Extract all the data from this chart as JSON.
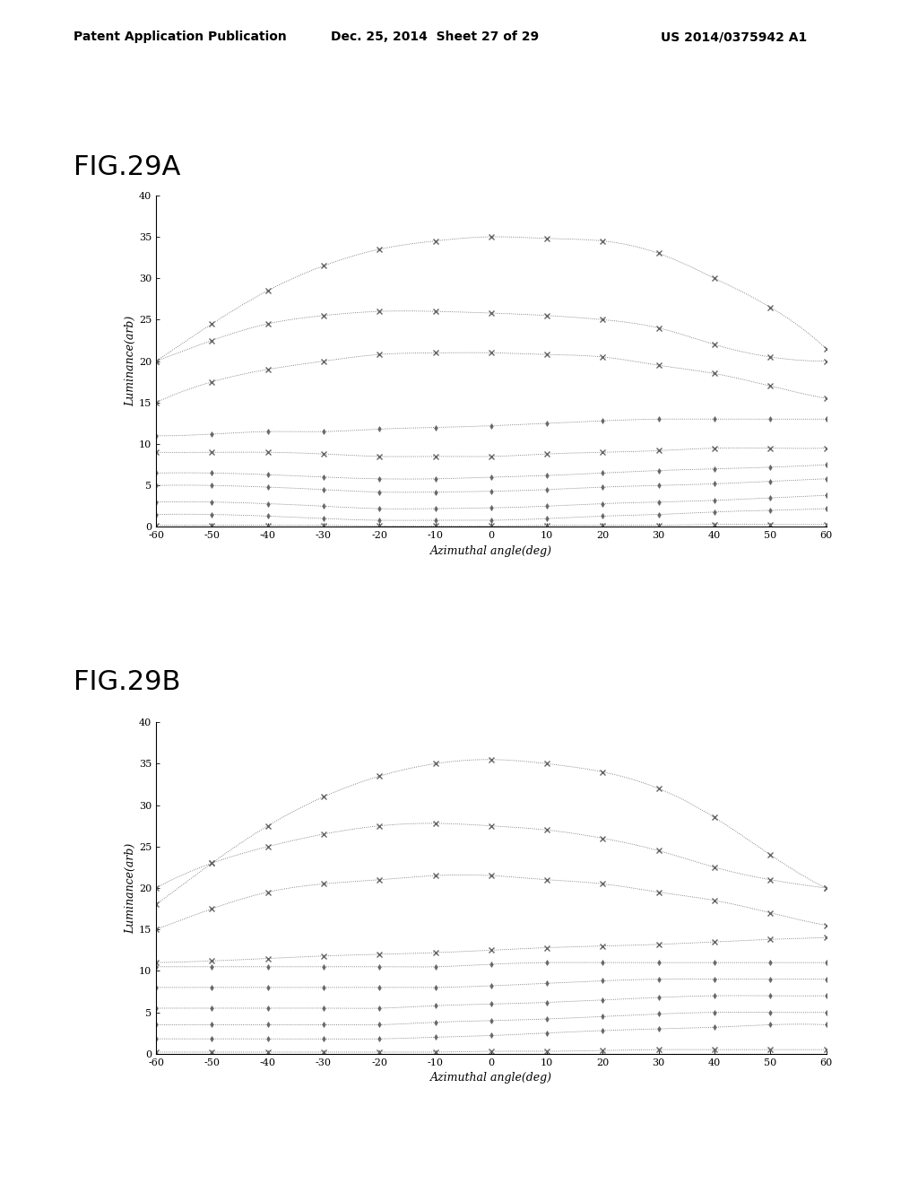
{
  "header_left": "Patent Application Publication",
  "header_mid": "Dec. 25, 2014  Sheet 27 of 29",
  "header_right": "US 2014/0375942 A1",
  "fig_a_label": "FIG.29A",
  "fig_b_label": "FIG.29B",
  "xlabel": "Azimuthal angle(deg)",
  "ylabel": "Luminance(arb)",
  "xlim": [
    -60,
    60
  ],
  "yticks": [
    0,
    5,
    10,
    15,
    20,
    25,
    30,
    35,
    40
  ],
  "xticks": [
    -60,
    -50,
    -40,
    -30,
    -20,
    -10,
    0,
    10,
    20,
    30,
    40,
    50,
    60
  ],
  "x_angles": [
    -60,
    -50,
    -40,
    -30,
    -20,
    -10,
    0,
    10,
    20,
    30,
    40,
    50,
    60
  ],
  "curves_a": [
    [
      20.0,
      24.5,
      28.5,
      31.5,
      33.5,
      34.5,
      35.0,
      34.8,
      34.5,
      33.0,
      30.0,
      26.5,
      21.5
    ],
    [
      20.0,
      22.5,
      24.5,
      25.5,
      26.0,
      26.0,
      25.8,
      25.5,
      25.0,
      24.0,
      22.0,
      20.5,
      20.0
    ],
    [
      15.0,
      17.5,
      19.0,
      20.0,
      20.8,
      21.0,
      21.0,
      20.8,
      20.5,
      19.5,
      18.5,
      17.0,
      15.5
    ],
    [
      11.0,
      11.2,
      11.5,
      11.5,
      11.8,
      12.0,
      12.2,
      12.5,
      12.8,
      13.0,
      13.0,
      13.0,
      13.0
    ],
    [
      9.0,
      9.0,
      9.0,
      8.8,
      8.5,
      8.5,
      8.5,
      8.8,
      9.0,
      9.2,
      9.5,
      9.5,
      9.5
    ],
    [
      6.5,
      6.5,
      6.3,
      6.0,
      5.8,
      5.8,
      6.0,
      6.2,
      6.5,
      6.8,
      7.0,
      7.2,
      7.5
    ],
    [
      5.0,
      5.0,
      4.8,
      4.5,
      4.2,
      4.2,
      4.3,
      4.5,
      4.8,
      5.0,
      5.2,
      5.5,
      5.8
    ],
    [
      3.0,
      3.0,
      2.8,
      2.5,
      2.2,
      2.2,
      2.3,
      2.5,
      2.8,
      3.0,
      3.2,
      3.5,
      3.8
    ],
    [
      1.5,
      1.5,
      1.3,
      1.0,
      0.8,
      0.8,
      0.8,
      1.0,
      1.3,
      1.5,
      1.8,
      2.0,
      2.2
    ],
    [
      0.2,
      0.2,
      0.2,
      0.2,
      0.1,
      0.1,
      0.1,
      0.2,
      0.2,
      0.2,
      0.3,
      0.3,
      0.3
    ]
  ],
  "markers_a": [
    "x",
    "x",
    "x",
    "d",
    "x",
    "d",
    "d",
    "d",
    "d",
    "x"
  ],
  "curves_b": [
    [
      18.0,
      23.0,
      27.5,
      31.0,
      33.5,
      35.0,
      35.5,
      35.0,
      34.0,
      32.0,
      28.5,
      24.0,
      20.0
    ],
    [
      20.0,
      23.0,
      25.0,
      26.5,
      27.5,
      27.8,
      27.5,
      27.0,
      26.0,
      24.5,
      22.5,
      21.0,
      20.0
    ],
    [
      15.0,
      17.5,
      19.5,
      20.5,
      21.0,
      21.5,
      21.5,
      21.0,
      20.5,
      19.5,
      18.5,
      17.0,
      15.5
    ],
    [
      11.0,
      11.2,
      11.5,
      11.8,
      12.0,
      12.2,
      12.5,
      12.8,
      13.0,
      13.2,
      13.5,
      13.8,
      14.0
    ],
    [
      10.5,
      10.5,
      10.5,
      10.5,
      10.5,
      10.5,
      10.8,
      11.0,
      11.0,
      11.0,
      11.0,
      11.0,
      11.0
    ],
    [
      8.0,
      8.0,
      8.0,
      8.0,
      8.0,
      8.0,
      8.2,
      8.5,
      8.8,
      9.0,
      9.0,
      9.0,
      9.0
    ],
    [
      5.5,
      5.5,
      5.5,
      5.5,
      5.5,
      5.8,
      6.0,
      6.2,
      6.5,
      6.8,
      7.0,
      7.0,
      7.0
    ],
    [
      3.5,
      3.5,
      3.5,
      3.5,
      3.5,
      3.8,
      4.0,
      4.2,
      4.5,
      4.8,
      5.0,
      5.0,
      5.0
    ],
    [
      1.8,
      1.8,
      1.8,
      1.8,
      1.8,
      2.0,
      2.2,
      2.5,
      2.8,
      3.0,
      3.2,
      3.5,
      3.5
    ],
    [
      0.2,
      0.2,
      0.2,
      0.2,
      0.2,
      0.2,
      0.3,
      0.3,
      0.4,
      0.5,
      0.5,
      0.5,
      0.5
    ]
  ],
  "markers_b": [
    "x",
    "x",
    "x",
    "x",
    "d",
    "d",
    "d",
    "d",
    "d",
    "x"
  ],
  "line_color": "#666666",
  "background_color": "#ffffff"
}
